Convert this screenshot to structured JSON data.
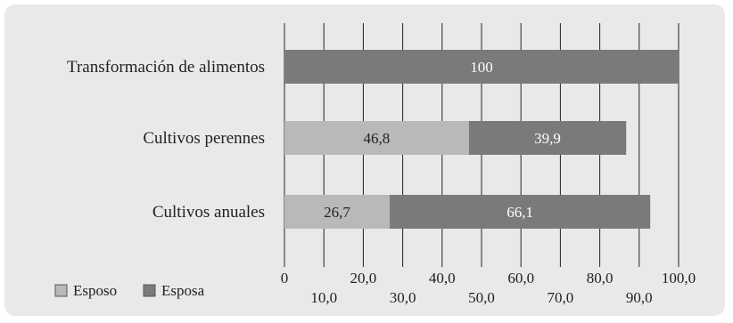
{
  "chart_data": {
    "type": "bar",
    "orientation": "horizontal",
    "stacked": true,
    "categories": [
      "Transformación de alimentos",
      "Cultivos perennes",
      "Cultivos anuales"
    ],
    "series": [
      {
        "name": "Esposo",
        "values": [
          0,
          46.8,
          26.7
        ],
        "labels": [
          "",
          "46,8",
          "26,7"
        ],
        "color": "#b9b9b9"
      },
      {
        "name": "Esposa",
        "values": [
          100,
          39.9,
          66.1
        ],
        "labels": [
          "100",
          "39,9",
          "66,1"
        ],
        "color": "#7a7a7a"
      }
    ],
    "xlim": [
      0,
      100
    ],
    "ticks_upper": [
      "0",
      "20,0",
      "40,0",
      "60,0",
      "80,0",
      "100,0"
    ],
    "ticks_lower": [
      "10,0",
      "30,0",
      "50,0",
      "70,0",
      "90,0"
    ],
    "grid": true,
    "legend_position": "bottom-left",
    "background_color": "#e9e9e9",
    "gridline_color": "#222222",
    "label_color_on_dark": "#ffffff",
    "label_color_on_light": "#222222"
  }
}
